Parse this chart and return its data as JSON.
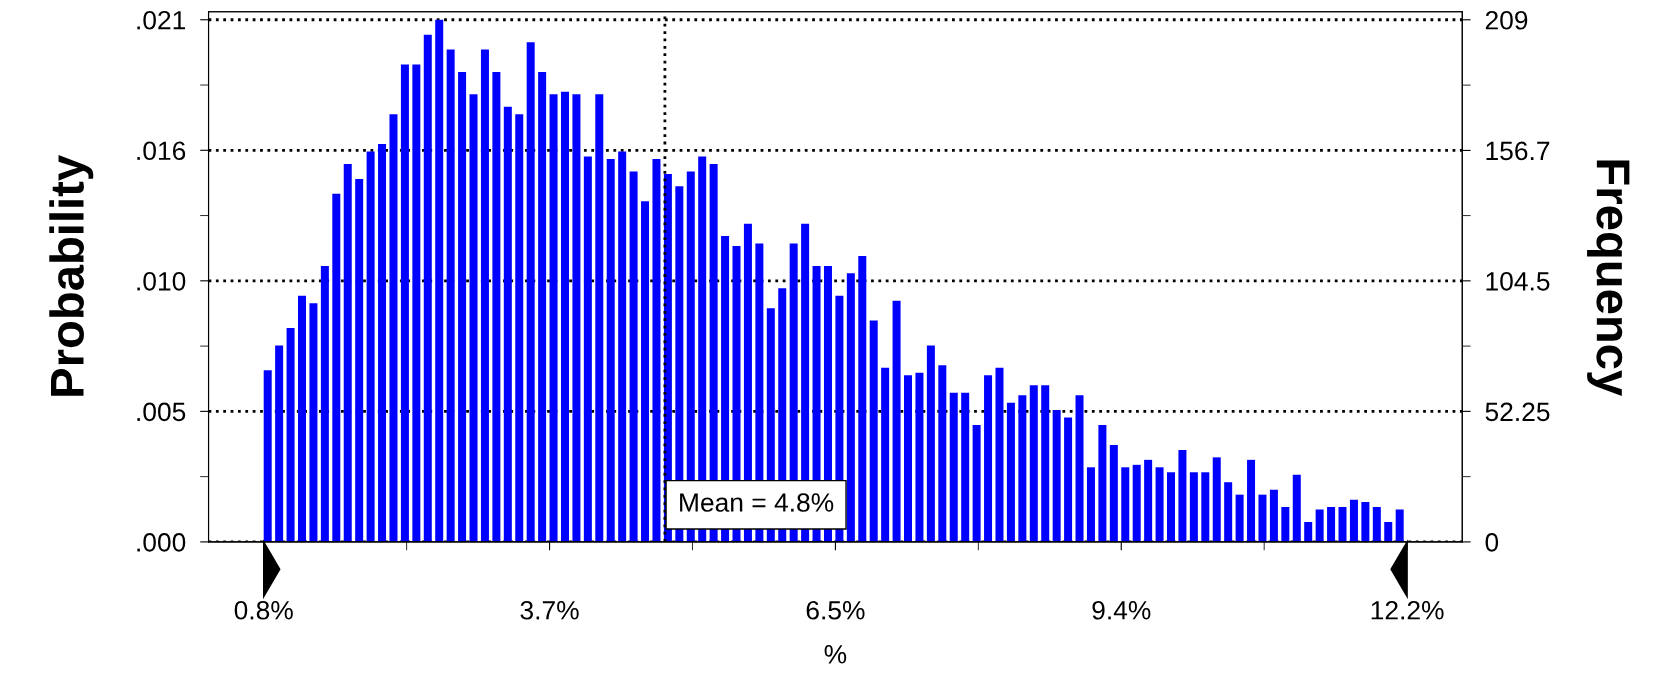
{
  "chart_data": {
    "type": "histogram",
    "xlabel": "%",
    "ylabel": "Probability",
    "y2label": "Frequency",
    "bins": [
      0.8,
      0.914,
      1.028,
      1.142,
      1.256,
      1.37,
      1.484,
      1.598,
      1.712,
      1.826,
      1.94,
      2.054,
      2.168,
      2.282,
      2.396,
      2.51,
      2.624,
      2.738,
      2.852,
      2.966,
      3.08,
      3.194,
      3.308,
      3.422,
      3.536,
      3.65,
      3.764,
      3.878,
      3.992,
      4.106,
      4.22,
      4.334,
      4.448,
      4.562,
      4.676,
      4.79,
      4.904,
      5.018,
      5.132,
      5.246,
      5.36,
      5.474,
      5.588,
      5.702,
      5.816,
      5.93,
      6.044,
      6.158,
      6.272,
      6.386,
      6.5,
      6.614,
      6.728,
      6.842,
      6.956,
      7.07,
      7.184,
      7.298,
      7.412,
      7.526,
      7.64,
      7.754,
      7.868,
      7.982,
      8.096,
      8.21,
      8.324,
      8.438,
      8.552,
      8.666,
      8.78,
      8.894,
      9.008,
      9.122,
      9.236,
      9.35,
      9.464,
      9.578,
      9.692,
      9.806,
      9.92,
      10.034,
      10.148,
      10.262,
      10.376,
      10.49,
      10.604,
      10.718,
      10.832,
      10.946,
      11.06,
      11.174,
      11.288,
      11.402,
      11.516,
      11.63,
      11.744,
      11.858,
      11.972,
      12.086,
      12.2
    ],
    "values": [
      0.0069,
      0.0079,
      0.0086,
      0.0099,
      0.0096,
      0.0111,
      0.014,
      0.0152,
      0.0146,
      0.0157,
      0.016,
      0.0172,
      0.0192,
      0.0192,
      0.0204,
      0.021,
      0.0198,
      0.0189,
      0.018,
      0.0198,
      0.0189,
      0.0175,
      0.0172,
      0.0201,
      0.0189,
      0.018,
      0.0181,
      0.018,
      0.0155,
      0.018,
      0.0154,
      0.0157,
      0.0149,
      0.0137,
      0.0154,
      0.0148,
      0.0143,
      0.0149,
      0.0155,
      0.0152,
      0.0123,
      0.0119,
      0.0128,
      0.012,
      0.0094,
      0.0102,
      0.012,
      0.0128,
      0.0111,
      0.0111,
      0.0099,
      0.0108,
      0.0115,
      0.0089,
      0.007,
      0.0097,
      0.0067,
      0.0068,
      0.0079,
      0.0071,
      0.006,
      0.006,
      0.0047,
      0.0067,
      0.007,
      0.0056,
      0.0059,
      0.0063,
      0.0063,
      0.0053,
      0.005,
      0.0059,
      0.003,
      0.0047,
      0.0039,
      0.003,
      0.0031,
      0.0033,
      0.003,
      0.0028,
      0.0037,
      0.0028,
      0.0028,
      0.0034,
      0.0024,
      0.0019,
      0.0033,
      0.0019,
      0.0021,
      0.0014,
      0.0027,
      0.0008,
      0.0013,
      0.0014,
      0.0014,
      0.0017,
      0.0016,
      0.0014,
      0.0008,
      0.0013
    ],
    "color": "#0000ff",
    "xlim": [
      0.25,
      12.75
    ],
    "xticks": [
      {
        "value": 0.8,
        "label": "0.8%"
      },
      {
        "value": 2.225,
        "label": null
      },
      {
        "value": 3.65,
        "label": "3.7%"
      },
      {
        "value": 5.075,
        "label": null
      },
      {
        "value": 6.5,
        "label": "6.5%"
      },
      {
        "value": 7.925,
        "label": null
      },
      {
        "value": 9.35,
        "label": "9.4%"
      },
      {
        "value": 10.775,
        "label": null
      },
      {
        "value": 12.2,
        "label": "12.2%"
      }
    ],
    "ylim": [
      0,
      0.02132
    ],
    "yticks": [
      {
        "value": 0,
        "label": ".000"
      },
      {
        "value": 0.002625,
        "label": null
      },
      {
        "value": 0.00525,
        "label": ".005"
      },
      {
        "value": 0.007875,
        "label": null
      },
      {
        "value": 0.0105,
        "label": ".010"
      },
      {
        "value": 0.013125,
        "label": null
      },
      {
        "value": 0.01575,
        "label": ".016"
      },
      {
        "value": 0.018375,
        "label": null
      },
      {
        "value": 0.021,
        "label": ".021"
      }
    ],
    "y2lim": [
      0,
      212.2
    ],
    "y2ticks": [
      0,
      {
        "value": 26.125,
        "label": null
      },
      52.25,
      {
        "value": 78.375,
        "label": null
      },
      104.5,
      {
        "value": 130.625,
        "label": null
      },
      156.7,
      {
        "value": 182.85,
        "label": null
      },
      209
    ],
    "grid": "y",
    "ref_lines": [
      {
        "axis": "x",
        "value": 4.8,
        "label": "Mean = 4.8%",
        "color": "#000000",
        "line_style": "dotted"
      }
    ]
  }
}
